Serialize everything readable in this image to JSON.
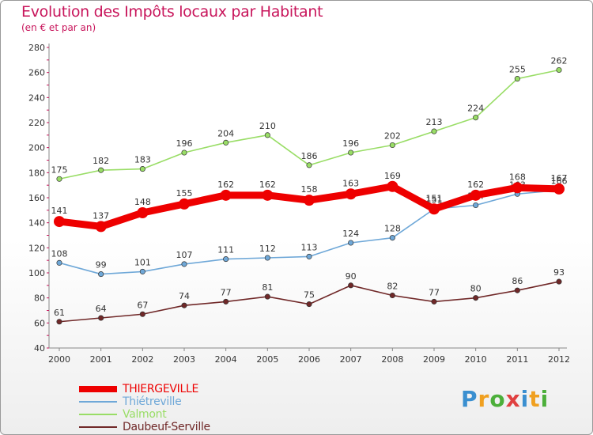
{
  "header": {
    "title": "Evolution des Impôts locaux par Habitant",
    "subtitle": "(en € et par an)"
  },
  "logo": {
    "text": "Proxiti",
    "letters": [
      "P",
      "r",
      "o",
      "x",
      "i",
      "t",
      "i"
    ],
    "colors": [
      "#3a8fd0",
      "#f0a020",
      "#4caf3a",
      "#e04040",
      "#3a8fd0",
      "#f0a020",
      "#4caf3a"
    ]
  },
  "chart_data": {
    "type": "line",
    "x": [
      "2000",
      "2001",
      "2002",
      "2003",
      "2004",
      "2005",
      "2006",
      "2007",
      "2008",
      "2009",
      "2010",
      "2011",
      "2012"
    ],
    "ylim": [
      40,
      280
    ],
    "yticks": [
      40,
      60,
      80,
      100,
      120,
      140,
      160,
      180,
      200,
      220,
      240,
      260,
      280
    ],
    "grid": false,
    "legend_position": "bottom-left",
    "series": [
      {
        "name": "THIERGEVILLE",
        "color": "#ee0000",
        "bold": true,
        "values": [
          141,
          137,
          148,
          155,
          162,
          162,
          158,
          163,
          169,
          151,
          162,
          168,
          167
        ]
      },
      {
        "name": "Thiétreville",
        "color": "#6fa8d8",
        "values": [
          108,
          99,
          101,
          107,
          111,
          112,
          113,
          124,
          128,
          151,
          154,
          163,
          166
        ]
      },
      {
        "name": "Valmont",
        "color": "#99dd66",
        "values": [
          175,
          182,
          183,
          196,
          204,
          210,
          186,
          196,
          202,
          213,
          224,
          255,
          262
        ]
      },
      {
        "name": "Daubeuf-Serville",
        "color": "#702828",
        "values": [
          61,
          64,
          67,
          74,
          77,
          81,
          75,
          90,
          82,
          77,
          80,
          86,
          93
        ]
      }
    ]
  }
}
